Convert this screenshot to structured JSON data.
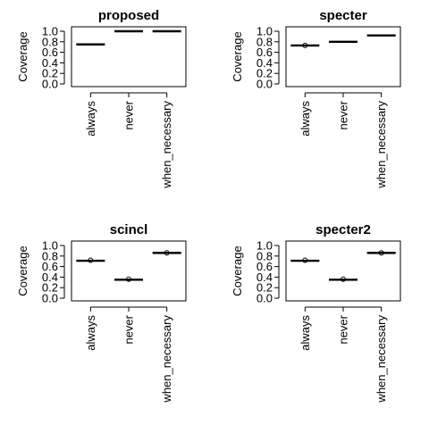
{
  "chart_data": [
    {
      "type": "box",
      "title": "proposed",
      "ylabel": "Coverage",
      "xlabel": "",
      "ylim": [
        0,
        1
      ],
      "yticks": [
        "0.0",
        "0.2",
        "0.4",
        "0.6",
        "0.8",
        "1.0"
      ],
      "categories": [
        "always",
        "never",
        "when_necessary"
      ],
      "values": [
        0.75,
        1.0,
        1.0
      ],
      "outliers": [
        null,
        null,
        null
      ]
    },
    {
      "type": "box",
      "title": "specter",
      "ylabel": "Coverage",
      "xlabel": "",
      "ylim": [
        0,
        1
      ],
      "yticks": [
        "0.0",
        "0.2",
        "0.4",
        "0.6",
        "0.8",
        "1.0"
      ],
      "categories": [
        "always",
        "never",
        "when_necessary"
      ],
      "values": [
        0.73,
        0.8,
        0.92
      ],
      "outliers": [
        0.73,
        null,
        null
      ]
    },
    {
      "type": "box",
      "title": "scincl",
      "ylabel": "Coverage",
      "xlabel": "",
      "ylim": [
        0,
        1
      ],
      "yticks": [
        "0.0",
        "0.2",
        "0.4",
        "0.6",
        "0.8",
        "1.0"
      ],
      "categories": [
        "always",
        "never",
        "when_necessary"
      ],
      "values": [
        0.71,
        0.35,
        0.86
      ],
      "outliers": [
        0.72,
        0.36,
        0.86
      ]
    },
    {
      "type": "box",
      "title": "specter2",
      "ylabel": "Coverage",
      "xlabel": "",
      "ylim": [
        0,
        1
      ],
      "yticks": [
        "0.0",
        "0.2",
        "0.4",
        "0.6",
        "0.8",
        "1.0"
      ],
      "categories": [
        "always",
        "never",
        "when_necessary"
      ],
      "values": [
        0.71,
        0.35,
        0.86
      ],
      "outliers": [
        0.72,
        0.36,
        0.86
      ]
    }
  ]
}
